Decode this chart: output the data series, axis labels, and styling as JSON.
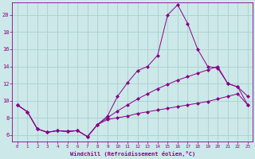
{
  "xlabel": "Windchill (Refroidissement éolien,°C)",
  "bg_color": "#cce8e8",
  "grid_color": "#aacfcf",
  "line_color": "#880088",
  "x_ticks": [
    0,
    1,
    2,
    3,
    4,
    5,
    6,
    7,
    8,
    9,
    10,
    11,
    12,
    13,
    14,
    15,
    16,
    17,
    18,
    19,
    20,
    21,
    22,
    23
  ],
  "y_ticks": [
    6,
    8,
    10,
    12,
    14,
    16,
    18,
    20
  ],
  "ylim": [
    5.2,
    21.5
  ],
  "xlim": [
    -0.5,
    23.5
  ],
  "curve1_x": [
    0,
    1,
    2,
    3,
    4,
    5,
    6,
    7,
    8,
    9,
    10,
    11,
    12,
    13,
    14,
    15,
    16,
    17,
    18,
    19,
    20,
    21,
    22,
    23
  ],
  "curve1_y": [
    9.5,
    8.7,
    6.7,
    6.3,
    6.5,
    6.4,
    6.5,
    5.8,
    7.2,
    8.2,
    10.5,
    12.1,
    13.5,
    14.0,
    15.3,
    20.0,
    21.2,
    19.0,
    16.0,
    14.0,
    13.8,
    12.0,
    11.6,
    10.5
  ],
  "curve2_x": [
    0,
    1,
    2,
    3,
    4,
    5,
    6,
    7,
    8,
    9,
    10,
    11,
    12,
    13,
    14,
    15,
    16,
    17,
    18,
    19,
    20,
    21,
    22,
    23
  ],
  "curve2_y": [
    9.5,
    8.7,
    6.7,
    6.3,
    6.5,
    6.4,
    6.5,
    5.8,
    7.2,
    8.0,
    8.8,
    9.5,
    10.2,
    10.8,
    11.4,
    11.9,
    12.4,
    12.8,
    13.2,
    13.6,
    14.0,
    12.0,
    11.6,
    9.5
  ],
  "curve3_x": [
    0,
    1,
    2,
    3,
    4,
    5,
    6,
    7,
    8,
    9,
    10,
    11,
    12,
    13,
    14,
    15,
    16,
    17,
    18,
    19,
    20,
    21,
    22,
    23
  ],
  "curve3_y": [
    9.5,
    8.7,
    6.7,
    6.3,
    6.5,
    6.4,
    6.5,
    5.8,
    7.2,
    7.8,
    8.0,
    8.2,
    8.5,
    8.7,
    8.9,
    9.1,
    9.3,
    9.5,
    9.7,
    9.9,
    10.2,
    10.5,
    10.8,
    9.5
  ]
}
